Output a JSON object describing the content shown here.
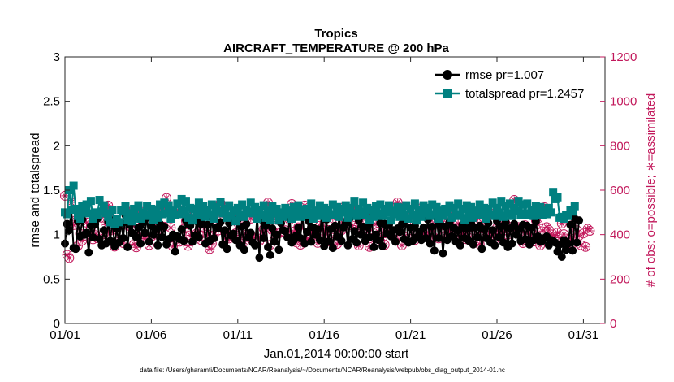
{
  "chart_data": {
    "type": "line",
    "title": "Tropics",
    "subtitle": "AIRCRAFT_TEMPERATURE @ 200 hPa",
    "xlabel": "Jan.01,2014 00:00:00 start",
    "ylabel": "rmse and totalspread",
    "y2label": "# of obs: o=possible; ∗=assimilated",
    "footnote": "data file: /Users/gharamti/Documents/NCAR/Reanalysis/~/Documents/NCAR/Reanalysis/webpub/obs_diag_output_2014-01.nc",
    "xlim": [
      0,
      31.25
    ],
    "ylim": [
      0,
      3
    ],
    "y2lim": [
      0,
      1200
    ],
    "xticks": [
      0,
      5,
      10,
      15,
      20,
      25,
      30
    ],
    "xtick_labels": [
      "01/01",
      "01/06",
      "01/11",
      "01/16",
      "01/21",
      "01/26",
      "01/31"
    ],
    "yticks": [
      0,
      0.5,
      1,
      1.5,
      2,
      2.5,
      3
    ],
    "ytick_labels": [
      "0",
      "0.5",
      "1",
      "1.5",
      "2",
      "2.5",
      "3"
    ],
    "y2ticks": [
      0,
      200,
      400,
      600,
      800,
      1000,
      1200
    ],
    "y2tick_labels": [
      "0",
      "200",
      "400",
      "600",
      "800",
      "1000",
      "1200"
    ],
    "legend_position": "top-right",
    "series": [
      {
        "name": "rmse pr=1.007",
        "color": "#000000",
        "marker": "circle",
        "values": [
          0.9,
          1.12,
          1.05,
          1.28,
          0.85,
          0.84,
          1.15,
          0.98,
          1.17,
          1.0,
          1.02,
          0.8,
          1.1,
          0.97,
          1.12,
          1.18,
          0.95,
          0.88,
          1.05,
          0.9,
          1.15,
          0.93,
          1.16,
          0.87,
          1.07,
          0.91,
          1.13,
          0.96,
          1.22,
          0.86,
          1.11,
          1.02,
          1.23,
          0.97,
          1.08,
          0.9,
          1.14,
          1.02,
          1.19,
          0.92,
          1.1,
          1.0,
          1.06,
          0.88,
          1.12,
          0.97,
          1.09,
          0.89,
          0.95,
          0.96,
          1.0,
          0.81,
          0.98,
          0.95,
          1.06,
          0.93,
          1.16,
          1.12,
          1.1,
          0.92,
          0.99,
          1.15,
          0.97,
          1.12,
          1.25,
          0.9,
          1.11,
          0.93,
          1.19,
          0.96,
          1.08,
          1.07,
          1.14,
          0.89,
          1.05,
          0.84,
          1.13,
          0.99,
          1.01,
          0.94,
          1.17,
          0.88,
          1.09,
          0.83,
          1.12,
          0.97,
          1.02,
          0.91,
          0.88,
          1.21,
          0.74,
          1.17,
          0.96,
          1.1,
          0.86,
          0.77,
          1.07,
          0.92,
          1.0,
          0.83,
          1.13,
          1.05,
          1.04,
          0.97,
          1.18,
          0.91,
          0.94,
          0.99,
          1.08,
          0.96,
          1.23,
          0.9,
          1.03,
          1.15,
          0.92,
          1.08,
          1.0,
          1.06,
          0.94,
          1.3,
          0.87,
          1.17,
          0.92,
          1.06,
          0.85,
          1.1,
          0.98,
          1.21,
          0.93,
          1.08,
          1.13,
          0.88,
          1.19,
          0.95,
          1.04,
          0.91,
          1.16,
          1.0,
          1.09,
          0.93,
          1.09,
          0.97,
          1.19,
          0.86,
          1.0,
          0.94,
          1.13,
          0.87,
          1.12,
          1.01,
          1.11,
          0.98,
          1.05,
          0.92,
          1.07,
          1.03,
          1.12,
          0.95,
          1.18,
          0.91,
          1.08,
          0.93,
          1.1,
          0.97,
          1.03,
          0.94,
          1.08,
          0.96,
          1.17,
          0.9,
          1.09,
          0.82,
          1.2,
          0.96,
          1.11,
          0.79,
          1.09,
          0.94,
          1.14,
          0.98,
          1.08,
          0.92,
          1.05,
          0.88,
          1.11,
          0.96,
          1.07,
          0.93,
          1.13,
          0.89,
          1.08,
          0.97,
          1.1,
          0.84,
          1.06,
          0.96,
          1.13,
          0.91,
          1.05,
          0.88,
          1.15,
          0.97,
          1.09,
          0.91,
          1.14,
          0.86,
          1.07,
          0.9,
          1.12,
          1.0,
          1.06,
          0.93,
          1.11,
          0.95,
          1.1,
          0.89,
          1.08,
          0.94,
          1.15,
          0.98,
          0.92,
          0.93,
          0.96,
          0.98,
          0.88,
          0.94,
          0.93,
          0.91,
          0.81,
          0.89,
          0.75,
          0.94,
          0.83,
          0.9,
          1.11,
          0.82,
          1.18,
          0.91,
          1.16
        ]
      },
      {
        "name": "totalspread pr=1.2457",
        "color": "#008080",
        "marker": "square",
        "values": [
          1.25,
          1.23,
          1.5,
          1.28,
          1.55,
          1.29,
          1.21,
          1.18,
          1.32,
          1.25,
          1.34,
          1.24,
          1.38,
          1.18,
          1.25,
          1.22,
          1.39,
          1.26,
          1.33,
          1.24,
          1.2,
          1.14,
          1.28,
          1.12,
          1.18,
          1.14,
          1.28,
          1.26,
          1.32,
          1.17,
          1.24,
          1.15,
          1.29,
          1.2,
          1.33,
          1.18,
          1.25,
          1.21,
          1.32,
          1.22,
          1.29,
          1.17,
          1.27,
          1.19,
          1.34,
          1.23,
          1.36,
          1.24,
          1.33,
          1.18,
          1.27,
          1.22,
          1.35,
          1.23,
          1.4,
          1.27,
          1.38,
          1.19,
          1.3,
          1.16,
          1.29,
          1.22,
          1.36,
          1.28,
          1.32,
          1.2,
          1.28,
          1.23,
          1.34,
          1.18,
          1.31,
          1.26,
          1.37,
          1.24,
          1.29,
          1.19,
          1.33,
          1.21,
          1.27,
          1.15,
          1.3,
          1.22,
          1.34,
          1.2,
          1.28,
          1.24,
          1.36,
          1.26,
          1.31,
          1.18,
          1.28,
          1.22,
          1.33,
          1.19,
          1.27,
          1.17,
          1.32,
          1.24,
          1.29,
          1.16,
          1.25,
          1.2,
          1.3,
          1.23,
          1.27,
          1.18,
          1.31,
          1.25,
          1.33,
          1.2,
          1.28,
          1.22,
          1.29,
          1.25,
          1.35,
          1.18,
          1.27,
          1.21,
          1.33,
          1.26,
          1.3,
          1.19,
          1.28,
          1.23,
          1.34,
          1.22,
          1.31,
          1.2,
          1.29,
          1.25,
          1.33,
          1.19,
          1.3,
          1.24,
          1.38,
          1.21,
          1.29,
          1.26,
          1.36,
          1.22,
          1.3,
          1.17,
          1.28,
          1.2,
          1.32,
          1.24,
          1.34,
          1.21,
          1.29,
          1.25,
          1.33,
          1.16,
          1.27,
          1.23,
          1.31,
          1.2,
          1.3,
          1.22,
          1.33,
          1.18,
          1.29,
          1.22,
          1.35,
          1.16,
          1.28,
          1.2,
          1.33,
          1.24,
          1.3,
          1.21,
          1.34,
          1.23,
          1.31,
          1.18,
          1.27,
          1.21,
          1.29,
          1.25,
          1.33,
          1.19,
          1.3,
          1.23,
          1.35,
          1.21,
          1.29,
          1.17,
          1.33,
          1.24,
          1.31,
          1.19,
          1.27,
          1.22,
          1.34,
          1.26,
          1.3,
          1.18,
          1.29,
          1.23,
          1.36,
          1.21,
          1.3,
          1.25,
          1.38,
          1.2,
          1.32,
          1.24,
          1.35,
          1.21,
          1.3,
          1.27,
          1.38,
          1.22,
          1.34,
          1.24,
          1.35,
          1.22,
          1.28,
          1.21,
          1.32,
          1.24,
          1.31,
          1.22,
          1.27,
          1.23,
          1.3,
          1.25,
          1.48,
          1.4,
          1.42,
          1.19,
          1.2,
          1.18,
          1.22,
          1.21,
          1.28,
          1.26,
          1.32
        ]
      },
      {
        "name": "# obs possible",
        "axis": "right",
        "color": "#c2185b",
        "marker": "circle-open",
        "values": [
          575,
          309,
          295,
          545,
          443,
          464,
          350,
          404,
          373,
          395,
          454,
          402,
          430,
          379,
          398,
          384,
          393,
          476,
          402,
          445,
          531,
          503,
          420,
          346,
          436,
          378,
          450,
          362,
          456,
          442,
          507,
          430,
          357,
          343,
          440,
          390,
          502,
          382,
          394,
          353,
          391,
          507,
          401,
          473,
          441,
          531,
          436,
          565,
          514,
          431,
          347,
          385,
          380,
          368,
          506,
          426,
          461,
          350,
          397,
          474,
          499,
          405,
          399,
          376,
          436,
          502,
          401,
          335,
          359,
          398,
          467,
          419,
          542,
          498,
          415,
          383,
          383,
          395,
          475,
          406,
          453,
          380,
          443,
          369,
          400,
          394,
          472,
          388,
          503,
          385,
          371,
          411,
          425,
          450,
          544,
          354,
          419,
          396,
          467,
          405,
          412,
          415,
          420,
          507,
          468,
          538,
          414,
          366,
          433,
          355,
          498,
          531,
          376,
          382,
          397,
          408,
          416,
          363,
          440,
          421,
          399,
          409,
          421,
          368,
          474,
          405,
          358,
          418,
          419,
          523,
          456,
          443,
          493,
          441,
          523,
          433,
          351,
          424,
          446,
          498,
          427,
          345,
          450,
          387,
          447,
          414,
          377,
          386,
          354,
          420,
          505,
          403,
          407,
          531,
          545,
          377,
          352,
          390,
          379,
          475,
          467,
          391,
          376,
          411,
          482,
          520,
          418,
          400,
          394,
          416,
          397,
          445,
          470,
          383,
          459,
          390,
          407,
          448,
          412,
          480,
          479,
          410,
          450,
          394,
          400,
          415,
          379,
          412,
          481,
          432,
          420,
          477,
          357,
          456,
          408,
          471,
          393,
          496,
          399,
          405,
          431,
          414,
          382,
          408,
          449,
          400,
          425,
          436,
          556,
          410,
          434,
          416,
          362,
          442,
          416,
          402,
          411,
          369,
          464,
          446,
          352,
          416,
          523,
          434,
          421,
          401,
          389,
          397,
          409,
          386,
          450,
          402,
          368,
          343,
          384,
          442,
          364,
          420,
          395,
          352,
          405,
          345,
          426,
          417
        ]
      },
      {
        "name": "# obs assimilated",
        "axis": "right",
        "color": "#c2185b",
        "marker": "asterisk",
        "values": [
          575,
          309,
          295,
          545,
          443,
          464,
          350,
          404,
          373,
          395,
          454,
          402,
          430,
          379,
          398,
          384,
          393,
          476,
          402,
          445,
          531,
          503,
          420,
          346,
          436,
          378,
          450,
          362,
          456,
          442,
          507,
          430,
          357,
          343,
          440,
          390,
          502,
          382,
          394,
          353,
          391,
          507,
          401,
          473,
          441,
          531,
          436,
          565,
          514,
          431,
          347,
          385,
          380,
          368,
          506,
          426,
          461,
          350,
          397,
          474,
          499,
          405,
          399,
          376,
          436,
          502,
          401,
          335,
          359,
          398,
          467,
          419,
          542,
          498,
          415,
          383,
          383,
          395,
          475,
          406,
          453,
          380,
          443,
          369,
          400,
          394,
          472,
          388,
          503,
          385,
          371,
          411,
          425,
          450,
          544,
          354,
          419,
          396,
          467,
          405,
          412,
          415,
          420,
          507,
          468,
          538,
          414,
          366,
          433,
          355,
          498,
          531,
          376,
          382,
          397,
          408,
          416,
          363,
          440,
          421,
          399,
          409,
          421,
          368,
          474,
          405,
          358,
          418,
          419,
          523,
          456,
          443,
          493,
          441,
          523,
          433,
          351,
          424,
          446,
          498,
          427,
          345,
          450,
          387,
          447,
          414,
          377,
          386,
          354,
          420,
          505,
          403,
          407,
          531,
          545,
          377,
          352,
          390,
          379,
          475,
          467,
          391,
          376,
          411,
          482,
          520,
          418,
          400,
          394,
          416,
          397,
          445,
          470,
          383,
          459,
          390,
          407,
          448,
          412,
          480,
          479,
          410,
          450,
          394,
          400,
          415,
          379,
          412,
          481,
          432,
          420,
          477,
          357,
          456,
          408,
          471,
          393,
          496,
          399,
          405,
          431,
          414,
          382,
          408,
          449,
          400,
          425,
          436,
          556,
          410,
          434,
          416,
          362,
          442,
          416,
          402,
          411,
          369,
          464,
          446,
          352,
          416,
          523,
          434,
          421,
          401,
          389,
          397,
          409,
          386,
          450,
          402,
          368,
          343,
          384,
          442,
          364,
          420,
          395,
          352,
          405,
          345,
          426,
          417
        ]
      }
    ],
    "x_start": 0,
    "x_step": 0.125
  }
}
